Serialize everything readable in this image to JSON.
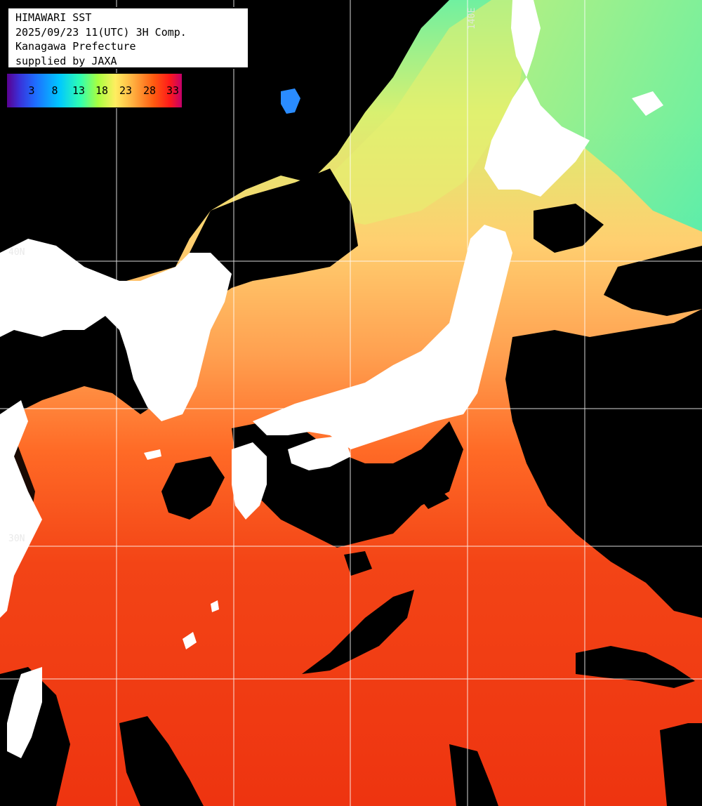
{
  "header": {
    "line1": "HIMAWARI SST",
    "line2": "2025/09/23 11(UTC) 3H Comp.",
    "line3": "Kanagawa Prefecture",
    "line4": "supplied by JAXA"
  },
  "legend": {
    "ticks": [
      "3",
      "8",
      "13",
      "18",
      "23",
      "28",
      "33"
    ],
    "colors": [
      "#5a0090",
      "#1e6cff",
      "#00c8ff",
      "#30ffb0",
      "#a8ff40",
      "#ffee60",
      "#ffb040",
      "#ff5a10",
      "#ff1a1a",
      "#c4006a"
    ]
  },
  "grid_labels": {
    "lat_40": "40N",
    "lat_30": "30N",
    "lon_140": "140E"
  },
  "colors": {
    "land": "#ffffff",
    "cloud": "#000000",
    "grid": "#ffffff",
    "sea_warm": "#f03c10",
    "sea_mid": "#ff8a3a",
    "sea_cool": "#e0f06a",
    "sea_cold": "#5cf0a0"
  }
}
